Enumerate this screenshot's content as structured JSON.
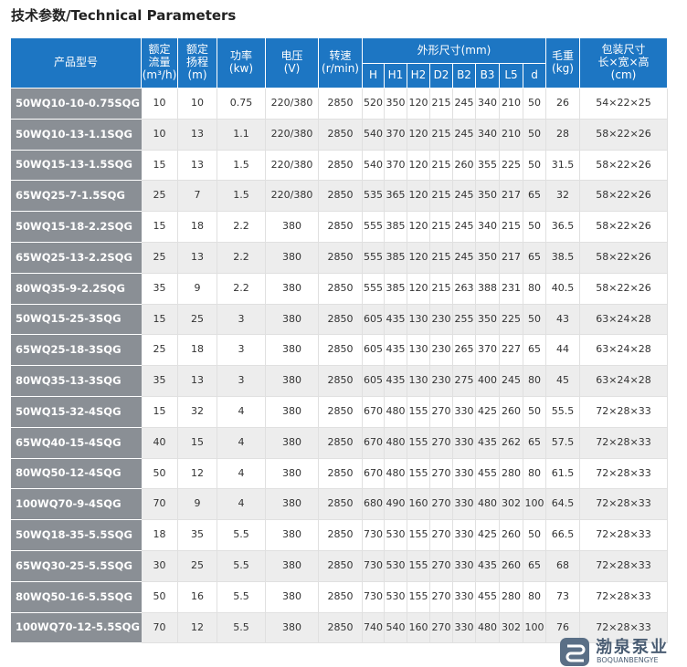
{
  "title": "技术参数/Technical Parameters",
  "table": {
    "header": [
      [
        "产品型号"
      ],
      [
        "额定",
        "流量",
        "(m³/h)"
      ],
      [
        "额定",
        "扬程",
        "(m)"
      ],
      [
        "功率",
        "(kw)"
      ],
      [
        "电压",
        "(V)"
      ],
      [
        "转速",
        "(r/min)"
      ],
      [
        "外形尺寸(mm)"
      ],
      [
        "毛重",
        "(kg)"
      ],
      [
        "包装尺寸",
        "长×宽×高",
        "(cm)"
      ]
    ],
    "subheader": [
      "H",
      "H1",
      "H2",
      "D2",
      "B2",
      "B3",
      "L5",
      "d"
    ],
    "rows": [
      [
        "50WQ10-10-0.75SQG",
        "10",
        "10",
        "0.75",
        "220/380",
        "2850",
        "520",
        "350",
        "120",
        "215",
        "245",
        "340",
        "210",
        "50",
        "26",
        "54×22×25"
      ],
      [
        "50WQ10-13-1.1SQG",
        "10",
        "13",
        "1.1",
        "220/380",
        "2850",
        "540",
        "370",
        "120",
        "215",
        "245",
        "340",
        "210",
        "50",
        "28",
        "58×22×26"
      ],
      [
        "50WQ15-13-1.5SQG",
        "15",
        "13",
        "1.5",
        "220/380",
        "2850",
        "540",
        "370",
        "120",
        "215",
        "260",
        "355",
        "225",
        "50",
        "31.5",
        "58×22×26"
      ],
      [
        "65WQ25-7-1.5SQG",
        "25",
        "7",
        "1.5",
        "220/380",
        "2850",
        "535",
        "365",
        "120",
        "215",
        "245",
        "350",
        "217",
        "65",
        "32",
        "58×22×26"
      ],
      [
        "50WQ15-18-2.2SQG",
        "15",
        "18",
        "2.2",
        "380",
        "2850",
        "555",
        "385",
        "120",
        "215",
        "245",
        "340",
        "215",
        "50",
        "36.5",
        "58×22×26"
      ],
      [
        "65WQ25-13-2.2SQG",
        "25",
        "13",
        "2.2",
        "380",
        "2850",
        "555",
        "385",
        "120",
        "215",
        "245",
        "350",
        "217",
        "65",
        "38.5",
        "58×22×26"
      ],
      [
        "80WQ35-9-2.2SQG",
        "35",
        "9",
        "2.2",
        "380",
        "2850",
        "555",
        "385",
        "120",
        "215",
        "263",
        "388",
        "231",
        "80",
        "40.5",
        "58×22×26"
      ],
      [
        "50WQ15-25-3SQG",
        "15",
        "25",
        "3",
        "380",
        "2850",
        "605",
        "435",
        "130",
        "230",
        "255",
        "350",
        "225",
        "50",
        "43",
        "63×24×28"
      ],
      [
        "65WQ25-18-3SQG",
        "25",
        "18",
        "3",
        "380",
        "2850",
        "605",
        "435",
        "130",
        "230",
        "265",
        "370",
        "227",
        "65",
        "44",
        "63×24×28"
      ],
      [
        "80WQ35-13-3SQG",
        "35",
        "13",
        "3",
        "380",
        "2850",
        "605",
        "435",
        "130",
        "230",
        "275",
        "400",
        "245",
        "80",
        "45",
        "63×24×28"
      ],
      [
        "50WQ15-32-4SQG",
        "15",
        "32",
        "4",
        "380",
        "2850",
        "670",
        "480",
        "155",
        "270",
        "330",
        "425",
        "260",
        "50",
        "55.5",
        "72×28×33"
      ],
      [
        "65WQ40-15-4SQG",
        "40",
        "15",
        "4",
        "380",
        "2850",
        "670",
        "480",
        "155",
        "270",
        "330",
        "435",
        "262",
        "65",
        "57.5",
        "72×28×33"
      ],
      [
        "80WQ50-12-4SQG",
        "50",
        "12",
        "4",
        "380",
        "2850",
        "670",
        "480",
        "155",
        "270",
        "330",
        "455",
        "280",
        "80",
        "61.5",
        "72×28×33"
      ],
      [
        "100WQ70-9-4SQG",
        "70",
        "9",
        "4",
        "380",
        "2850",
        "680",
        "490",
        "160",
        "270",
        "330",
        "480",
        "302",
        "100",
        "64.5",
        "72×28×33"
      ],
      [
        "50WQ18-35-5.5SQG",
        "18",
        "35",
        "5.5",
        "380",
        "2850",
        "730",
        "530",
        "155",
        "270",
        "330",
        "425",
        "260",
        "50",
        "66.5",
        "72×28×33"
      ],
      [
        "65WQ30-25-5.5SQG",
        "30",
        "25",
        "5.5",
        "380",
        "2850",
        "730",
        "530",
        "155",
        "270",
        "330",
        "435",
        "260",
        "65",
        "68",
        "72×28×33"
      ],
      [
        "80WQ50-16-5.5SQG",
        "50",
        "16",
        "5.5",
        "380",
        "2850",
        "730",
        "530",
        "155",
        "270",
        "330",
        "455",
        "280",
        "80",
        "73",
        "72×28×33"
      ],
      [
        "100WQ70-12-5.5SQG",
        "70",
        "12",
        "5.5",
        "380",
        "2850",
        "740",
        "540",
        "160",
        "270",
        "330",
        "480",
        "302",
        "100",
        "76",
        "72×28×33"
      ]
    ]
  },
  "logo": {
    "name": "渤泉泵业",
    "pinyin": "BOQUANBENGYE"
  }
}
